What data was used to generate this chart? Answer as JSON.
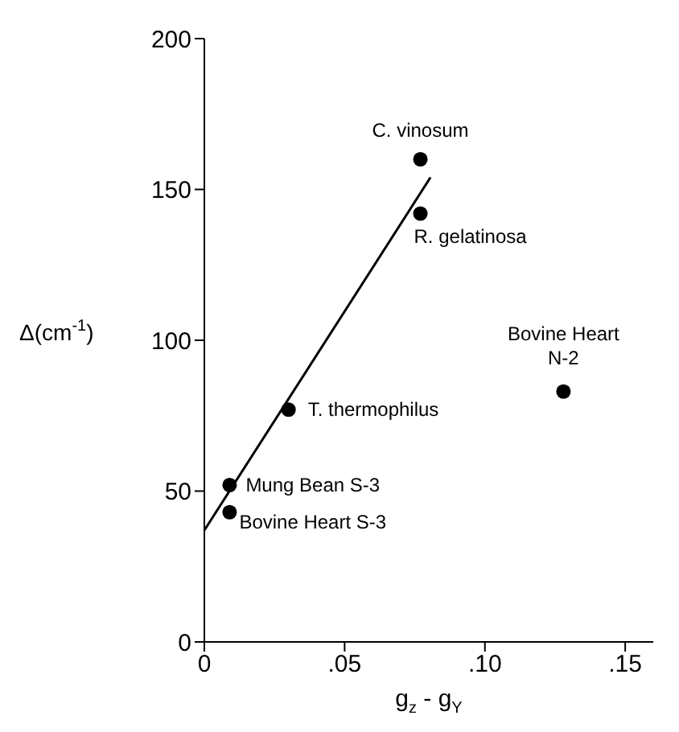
{
  "chart_data": {
    "type": "scatter",
    "xlabel": "g$_{z}$ - g$_{Y}$",
    "ylabel": "Δ(cm$^{-1}$)",
    "series": [
      {
        "color": "#000000",
        "marker": "circle",
        "x": [
          0.077,
          0.077,
          0.03,
          0.009,
          0.009,
          0.128
        ],
        "values": [
          160,
          142,
          77,
          52,
          43,
          83
        ]
      },
      {
        "type": "line",
        "color": "#000000",
        "x": [
          0,
          0.0806
        ],
        "values": [
          37,
          154
        ]
      }
    ],
    "xlim": [
      0,
      0.16
    ],
    "xticks": [
      {
        "value": 0,
        "label": "0"
      },
      {
        "value": 0.05,
        "label": ".05"
      },
      {
        "value": 0.1,
        "label": ".10"
      },
      {
        "value": 0.15,
        "label": ".15"
      }
    ],
    "ylim": [
      0,
      200
    ],
    "yticks": [
      0,
      50,
      100,
      150,
      200
    ],
    "grid": false,
    "annotations": [
      {
        "text": "C. vinosum",
        "x": 0.077,
        "y": 160
      },
      {
        "text": "R. gelatinosa",
        "x": 0.077,
        "y": 142
      },
      {
        "text": "T. thermophilus",
        "x": 0.03,
        "y": 77
      },
      {
        "text": "Mung Bean S-3",
        "x": 0.009,
        "y": 52
      },
      {
        "text": "Bovine Heart S-3",
        "x": 0.009,
        "y": 43
      },
      {
        "text": "Bovine Heart N-2",
        "x": 0.128,
        "y": 83
      }
    ]
  }
}
